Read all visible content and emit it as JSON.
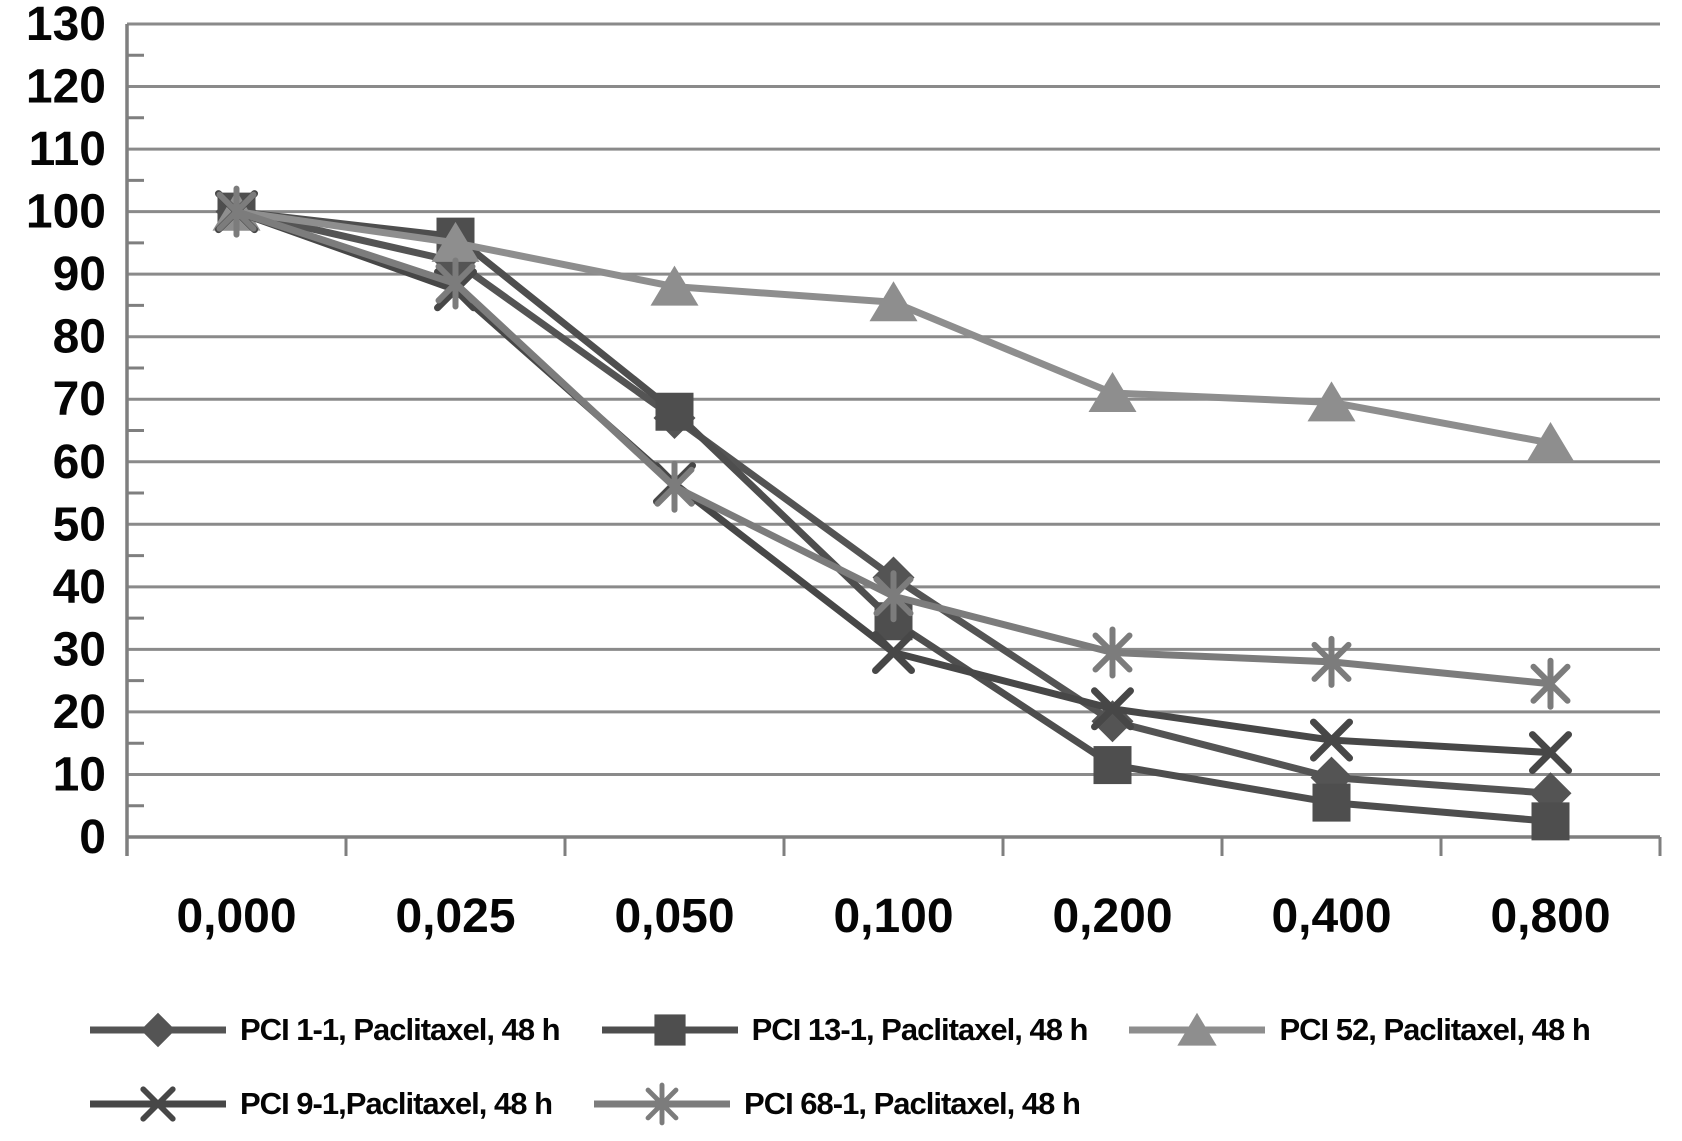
{
  "chart_data": {
    "type": "line",
    "title": "",
    "xlabel": "",
    "ylabel": "",
    "grid": true,
    "legend_position": "bottom",
    "categories": [
      "0,000",
      "0,025",
      "0,050",
      "0,100",
      "0,200",
      "0,400",
      "0,800"
    ],
    "y_axis": {
      "min": 0,
      "max": 130,
      "major_step": 10,
      "minor_step": 5,
      "tick_labels": [
        "0",
        "10",
        "20",
        "30",
        "40",
        "50",
        "60",
        "70",
        "80",
        "90",
        "100",
        "110",
        "120",
        "130"
      ]
    },
    "series": [
      {
        "name": "PCI 1-1, Paclitaxel, 48 h",
        "marker": "diamond",
        "color": "#545454",
        "values": [
          100,
          92,
          67,
          41.5,
          18.5,
          9.5,
          7
        ]
      },
      {
        "name": "PCI 13-1, Paclitaxel, 48 h",
        "marker": "square",
        "color": "#4e4e4e",
        "values": [
          100,
          96,
          68,
          34.5,
          11.5,
          5.5,
          2.5
        ]
      },
      {
        "name": "PCI 52, Paclitaxel, 48 h",
        "marker": "triangle",
        "color": "#8e8e8e",
        "values": [
          100,
          95,
          88,
          85.5,
          71,
          69.5,
          63
        ]
      },
      {
        "name": "PCI 9-1,Paclitaxel, 48 h",
        "marker": "x",
        "color": "#474747",
        "values": [
          100,
          87.5,
          56.5,
          29.5,
          20.5,
          15.5,
          13.5
        ]
      },
      {
        "name": "PCI 68-1, Paclitaxel, 48 h",
        "marker": "asterisk",
        "color": "#7c7c7c",
        "values": [
          100,
          88.5,
          56,
          38.5,
          29.5,
          28,
          24.5
        ]
      }
    ],
    "legend_rows": [
      [
        0,
        1,
        2
      ],
      [
        3,
        4
      ]
    ],
    "axis_color": "#7f7f7f",
    "grid_color": "#8a8a8a",
    "text_color": "#050505"
  }
}
